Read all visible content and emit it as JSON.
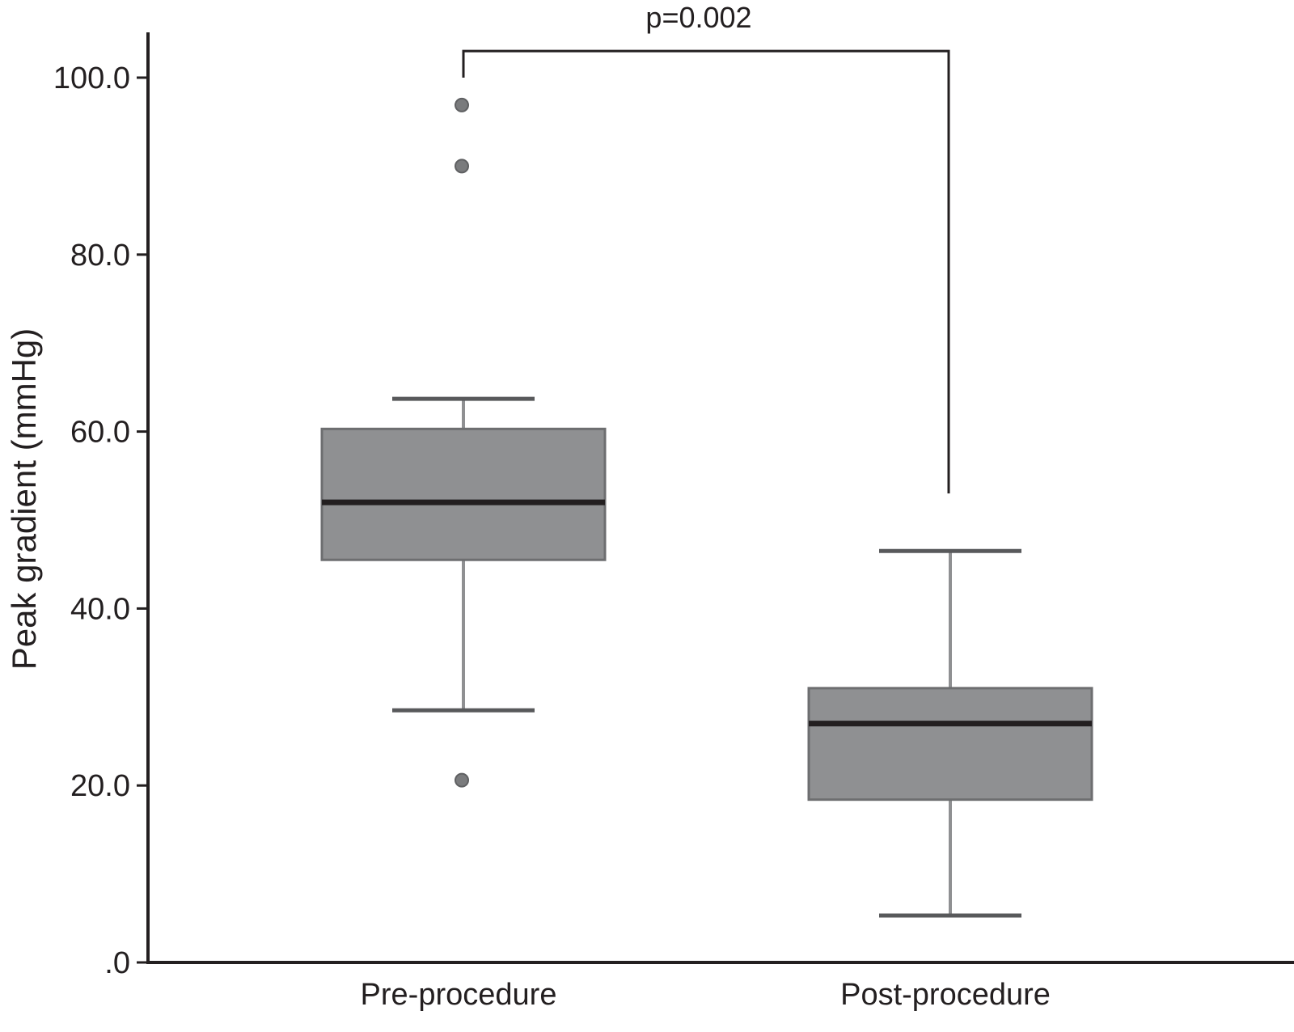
{
  "chart_data": {
    "type": "box",
    "ylabel": "Peak gradient (mmHg)",
    "xlabel": "",
    "ylim": [
      0,
      100
    ],
    "yticks": [
      0,
      20,
      40,
      60,
      80,
      100
    ],
    "ytick_labels": [
      ".0",
      "20.0",
      "40.0",
      "60.0",
      "80.0",
      "100.0"
    ],
    "categories": [
      "Pre-procedure",
      "Post-procedure"
    ],
    "boxes": [
      {
        "category": "Pre-procedure",
        "whisker_low": 28.5,
        "q1": 45.5,
        "median": 52.0,
        "q3": 60.3,
        "whisker_high": 63.7,
        "outliers": [
          20.6,
          90.0,
          96.9
        ]
      },
      {
        "category": "Post-procedure",
        "whisker_low": 5.3,
        "q1": 18.4,
        "median": 27.0,
        "q3": 31.0,
        "whisker_high": 46.5,
        "outliers": []
      }
    ],
    "annotation": {
      "text": "p=0.002",
      "bracket_top": 103.0,
      "left_end": 100.0,
      "right_end": 53.0
    },
    "grid": false,
    "legend": "none",
    "colors": {
      "box_fill": "#8f9092",
      "box_edge": "#6d6e70",
      "median": "#231f20",
      "whisker": "#8f9092",
      "cap": "#58595b",
      "axis": "#231f20",
      "outlier": "#7a7b7d"
    }
  }
}
